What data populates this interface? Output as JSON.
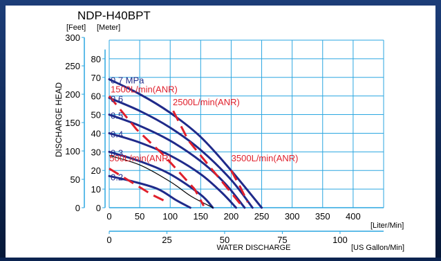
{
  "chart_data": {
    "type": "line",
    "title": "NDP-H40BPT",
    "ylabel": "DISCHARGE HEAD",
    "xlabel": "WATER DISCHARGE",
    "x_unit_primary": "[Liter/Min]",
    "x_unit_secondary": "[US Gallon/Min]",
    "y_unit_primary": "[Feet]",
    "y_unit_secondary": "[Meter]",
    "xlim": [
      0,
      450
    ],
    "ylim_meter": [
      0,
      90
    ],
    "x_ticks": [
      0,
      50,
      100,
      150,
      200,
      250,
      300,
      350,
      400
    ],
    "meter_ticks": [
      0,
      10,
      20,
      30,
      40,
      50,
      60,
      70,
      80
    ],
    "feet_ticks": [
      0,
      50,
      100,
      150,
      200,
      250,
      300
    ],
    "gallon_ticks": [
      0,
      25,
      50,
      75,
      100
    ],
    "grid": true,
    "colors": {
      "pressure": "#1f2a8a",
      "air": "#e0202c",
      "grid": "#2aa6e0",
      "threshold": "#000000"
    },
    "pressure_series": [
      {
        "name": "0.7 MPa",
        "points": [
          [
            0,
            69
          ],
          [
            50,
            61
          ],
          [
            100,
            51
          ],
          [
            150,
            38
          ],
          [
            200,
            20
          ],
          [
            250,
            0
          ]
        ]
      },
      {
        "name": "0.6",
        "points": [
          [
            0,
            59
          ],
          [
            50,
            52
          ],
          [
            100,
            43
          ],
          [
            150,
            31
          ],
          [
            200,
            15
          ],
          [
            235,
            0
          ]
        ]
      },
      {
        "name": "0.5",
        "points": [
          [
            0,
            50
          ],
          [
            50,
            44
          ],
          [
            100,
            36
          ],
          [
            150,
            25
          ],
          [
            190,
            13
          ],
          [
            222,
            0
          ]
        ]
      },
      {
        "name": "0.4",
        "points": [
          [
            0,
            40
          ],
          [
            50,
            35
          ],
          [
            100,
            28
          ],
          [
            150,
            18
          ],
          [
            185,
            8
          ],
          [
            208,
            0
          ]
        ]
      },
      {
        "name": "0.3",
        "points": [
          [
            0,
            30
          ],
          [
            50,
            25
          ],
          [
            100,
            18
          ],
          [
            150,
            7
          ],
          [
            170,
            0
          ]
        ]
      },
      {
        "name": "0.2",
        "points": [
          [
            0,
            17
          ],
          [
            40,
            14
          ],
          [
            80,
            10
          ],
          [
            110,
            4
          ],
          [
            133,
            0
          ]
        ]
      }
    ],
    "threshold_line": {
      "points": [
        [
          0,
          28
        ],
        [
          50,
          23
        ],
        [
          100,
          14
        ],
        [
          135,
          6
        ],
        [
          170,
          0
        ]
      ]
    },
    "air_series": [
      {
        "name": "1500L/min(ANR)",
        "points": [
          [
            0,
            60
          ],
          [
            45,
            42
          ],
          [
            90,
            28
          ],
          [
            140,
            10
          ],
          [
            155,
            1
          ]
        ]
      },
      {
        "name": "2500L/min(ANR)",
        "points": [
          [
            105,
            52
          ],
          [
            130,
            36
          ],
          [
            160,
            24
          ],
          [
            195,
            10
          ],
          [
            215,
            2
          ]
        ]
      },
      {
        "name": "3500L/min(ANR)",
        "points": [
          [
            200,
            20
          ],
          [
            215,
            11
          ],
          [
            227,
            3
          ]
        ]
      },
      {
        "name": "500L/min(ANR)",
        "points": [
          [
            0,
            21
          ],
          [
            40,
            13
          ],
          [
            70,
            7
          ],
          [
            95,
            3
          ]
        ]
      }
    ]
  }
}
